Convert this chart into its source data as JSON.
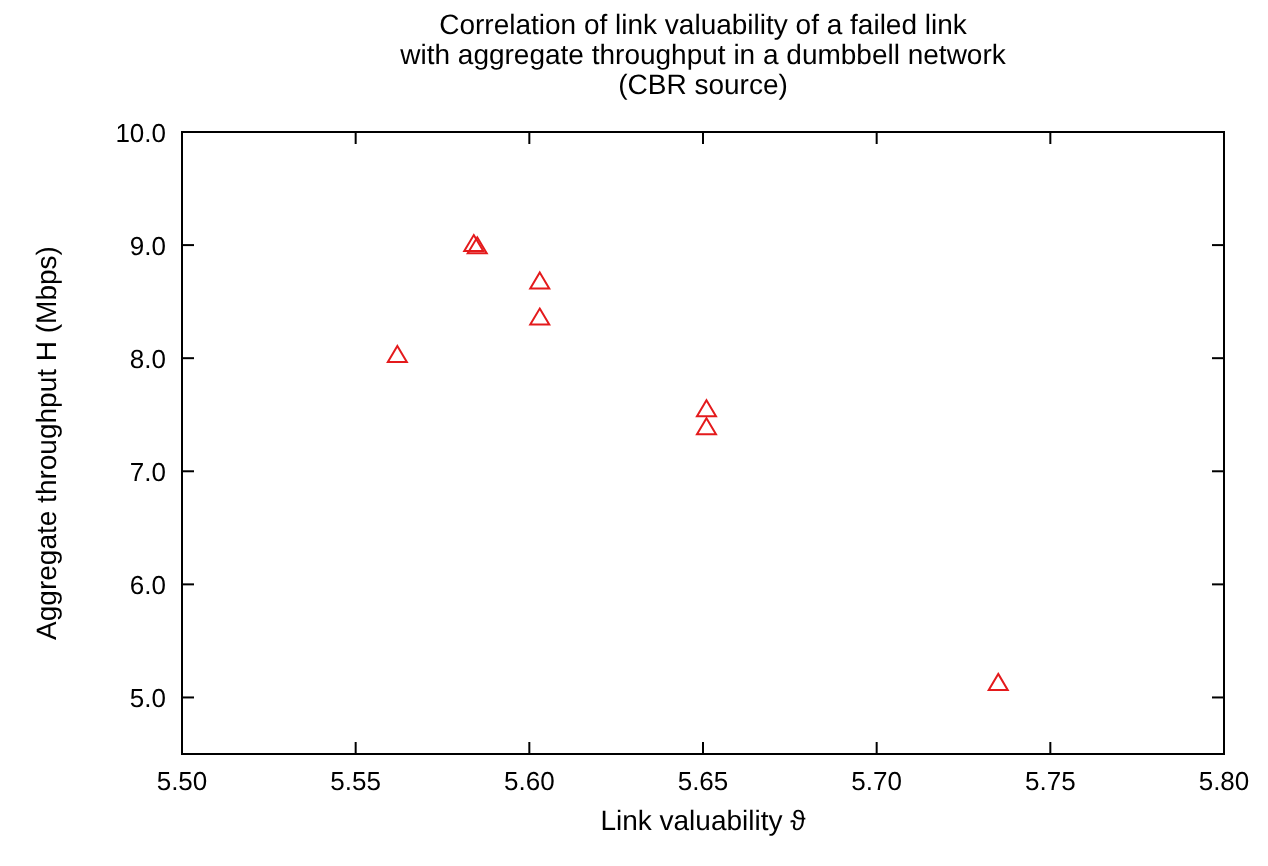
{
  "chart_data": {
    "type": "scatter",
    "title": "Correlation of link valuability of a failed link\nwith aggregate throughput in a dumbbell network\n(CBR source)",
    "xlabel": "Link valuability ϑ",
    "ylabel": "Aggregate throughput H (Mbps)",
    "series": [
      {
        "color": "#e41a1c",
        "x": [
          5.562,
          5.584,
          5.585,
          5.603,
          5.603,
          5.651,
          5.651,
          5.735
        ],
        "values": [
          8.02,
          9.0,
          8.98,
          8.67,
          8.35,
          7.54,
          7.38,
          5.12
        ]
      }
    ],
    "xlim": [
      5.5,
      5.8
    ],
    "xticks": [
      {
        "value": 5.5,
        "label": "5.50"
      },
      {
        "value": 5.55,
        "label": "5.55"
      },
      {
        "value": 5.6,
        "label": "5.60"
      },
      {
        "value": 5.65,
        "label": "5.65"
      },
      {
        "value": 5.7,
        "label": "5.70"
      },
      {
        "value": 5.75,
        "label": "5.75"
      },
      {
        "value": 5.8,
        "label": "5.80"
      }
    ],
    "ylim": [
      4.5,
      10
    ],
    "yticks": [
      {
        "value": 5,
        "label": "5.0"
      },
      {
        "value": 6,
        "label": "6.0"
      },
      {
        "value": 7,
        "label": "7.0"
      },
      {
        "value": 8,
        "label": "8.0"
      },
      {
        "value": 9,
        "label": "9.0"
      },
      {
        "value": 10,
        "label": "10.0"
      }
    ],
    "grid": false,
    "marker": "triangle"
  }
}
